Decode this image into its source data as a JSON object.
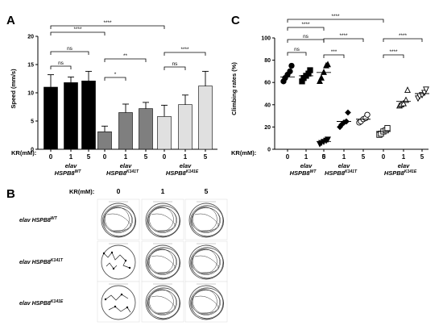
{
  "panels": {
    "A": {
      "letter": "A"
    },
    "B": {
      "letter": "B",
      "kr_label": "KR(mM):",
      "columns": [
        "0",
        "1",
        "5"
      ],
      "rows": [
        {
          "line1": "elav HSPB8",
          "sup": "WT"
        },
        {
          "line1": "elav HSPB8",
          "sup": "K141T"
        },
        {
          "line1": "elav HSPB8",
          "sup": "K141E"
        }
      ]
    },
    "C": {
      "letter": "C"
    }
  },
  "genotypes": [
    {
      "line1": "elav",
      "line2": "HSPB8",
      "sup": "WT"
    },
    {
      "line1": "elav",
      "line2": "HSPB8",
      "sup": "K141T"
    },
    {
      "line1": "elav",
      "line2": "HSPB8",
      "sup": "K141E"
    }
  ],
  "chart_data": [
    {
      "type": "bar",
      "panel": "A",
      "ylabel": "Speed (mm/s)",
      "xlabel": "KR(mM):",
      "ylim": [
        0,
        20
      ],
      "yticks": [
        0,
        5,
        10,
        15,
        20
      ],
      "categories": [
        "0",
        "1",
        "5",
        "0",
        "1",
        "5",
        "0",
        "1",
        "5"
      ],
      "groups": [
        "WT",
        "K141T",
        "K141E"
      ],
      "values": [
        11.0,
        11.8,
        12.1,
        3.1,
        6.5,
        7.2,
        5.8,
        7.9,
        11.2
      ],
      "errors": [
        2.2,
        1.0,
        1.7,
        1.0,
        1.5,
        1.1,
        2.0,
        1.7,
        2.6
      ],
      "colors": [
        "#000000",
        "#000000",
        "#000000",
        "#7f7f7f",
        "#7f7f7f",
        "#7f7f7f",
        "#e0e0e0",
        "#e0e0e0",
        "#e0e0e0"
      ],
      "annotations": [
        {
          "from": 0,
          "to": 1,
          "label": "ns"
        },
        {
          "from": 0,
          "to": 2,
          "label": "ns"
        },
        {
          "from": 3,
          "to": 4,
          "label": "*"
        },
        {
          "from": 3,
          "to": 5,
          "label": "**"
        },
        {
          "from": 6,
          "to": 7,
          "label": "ns"
        },
        {
          "from": 6,
          "to": 8,
          "label": "****"
        },
        {
          "from": 0,
          "to": 3,
          "label": "****"
        },
        {
          "from": 0,
          "to": 6,
          "label": "****"
        }
      ]
    },
    {
      "type": "scatter",
      "panel": "C",
      "ylabel": "Climbing rates (%)",
      "xlabel": "KR(mM):",
      "ylim": [
        0,
        100
      ],
      "yticks": [
        0,
        20,
        40,
        60,
        80,
        100
      ],
      "categories": [
        "0",
        "1",
        "5",
        "0",
        "1",
        "5",
        "0",
        "1",
        "5"
      ],
      "groups": [
        "WT",
        "K141T",
        "K141E"
      ],
      "markers": [
        "circle",
        "square",
        "triangle",
        "triangle-down",
        "diamond",
        "circle-open",
        "square-open",
        "triangle-open",
        "triangle-down-open"
      ],
      "means": [
        65,
        66,
        69,
        7,
        25,
        27,
        16,
        43,
        50
      ],
      "points": [
        [
          61,
          64,
          67,
          70,
          75
        ],
        [
          61,
          64,
          66,
          68,
          71
        ],
        [
          61,
          64,
          69,
          75,
          76
        ],
        [
          5,
          6,
          7,
          8,
          9
        ],
        [
          20,
          22,
          24,
          25,
          33
        ],
        [
          24,
          25,
          27,
          28,
          31
        ],
        [
          13,
          14,
          16,
          17,
          19
        ],
        [
          39,
          40,
          41,
          44,
          53
        ],
        [
          46,
          48,
          49,
          51,
          54
        ]
      ],
      "annotations": [
        {
          "from": 0,
          "to": 1,
          "label": "ns"
        },
        {
          "from": 0,
          "to": 2,
          "label": "ns"
        },
        {
          "from": 3,
          "to": 4,
          "label": "***"
        },
        {
          "from": 3,
          "to": 5,
          "label": "****"
        },
        {
          "from": 6,
          "to": 7,
          "label": "****"
        },
        {
          "from": 6,
          "to": 8,
          "label": "****"
        },
        {
          "from": 0,
          "to": 3,
          "label": "****"
        },
        {
          "from": 0,
          "to": 6,
          "label": "****"
        }
      ]
    }
  ]
}
